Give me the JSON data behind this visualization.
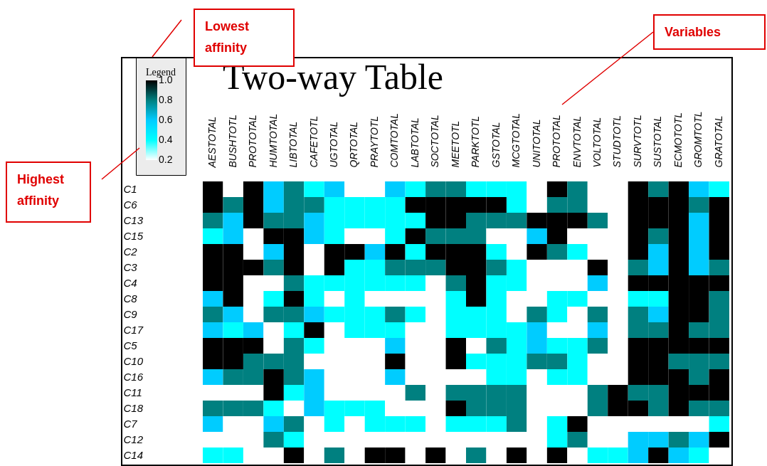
{
  "chart_data": {
    "type": "heatmap",
    "title": "Two-way Table",
    "legend_title": "Legend",
    "clim": [
      0.2,
      1
    ],
    "categories": [
      "AESTOTAL",
      "BUSHTOTL",
      "PROTOTAL",
      "HUMTOTAL",
      "LIBTOTAL",
      "CAFETOTL",
      "UGTOTAL",
      "QRTOTAL",
      "PRAYTOTL",
      "COMTOTAL",
      "LABTOTAL",
      "SOCTOTAL",
      "MEETOTL",
      "PARKTOTL",
      "GSTOTAL",
      "MCGTOTAL",
      "UNITOTAL",
      "PROTOTAL",
      "ENVTOTAL",
      "VOLTOTAL",
      "STUDTOTL",
      "SURVTOTL",
      "SUSTOTAL",
      "ECMOTOTL",
      "GROMTOTL",
      "GRATOTAL"
    ],
    "y_categories": [
      "C1",
      "C6",
      "C13",
      "C15",
      "C2",
      "C3",
      "C4",
      "C8",
      "C9",
      "C17",
      "C5",
      "C10",
      "C16",
      "C11",
      "C18",
      "C7",
      "C12",
      "C14"
    ],
    "cells": [
      [
        1,
        0.2,
        1,
        0.6,
        0.8,
        0.4,
        0.6,
        0.2,
        0.2,
        0.6,
        0.4,
        0.8,
        0.8,
        0.4,
        0.4,
        0.4,
        0.2,
        1,
        0.8,
        0.2,
        0.2,
        1,
        0.8,
        1,
        0.6,
        0.4
      ],
      [
        1,
        0.8,
        1,
        0.6,
        0.8,
        0.8,
        0.4,
        0.4,
        0.4,
        0.4,
        1,
        1,
        1,
        1,
        1,
        0.4,
        0.2,
        0.8,
        0.8,
        0.2,
        0.2,
        1,
        1,
        1,
        0.8,
        1
      ],
      [
        0.8,
        0.6,
        1,
        0.8,
        0.8,
        0.6,
        0.4,
        0.4,
        0.4,
        0.4,
        0.4,
        1,
        1,
        0.8,
        0.8,
        0.8,
        1,
        1,
        1,
        0.8,
        0.2,
        1,
        1,
        1,
        0.6,
        1
      ],
      [
        0.4,
        0.6,
        0.2,
        1,
        1,
        0.6,
        0.4,
        0.2,
        0.2,
        0.4,
        1,
        0.8,
        0.8,
        0.8,
        0.2,
        0.2,
        0.6,
        1,
        0.2,
        0.2,
        0.2,
        1,
        0.8,
        1,
        0.6,
        1
      ],
      [
        1,
        1,
        0.2,
        0.6,
        1,
        0.2,
        1,
        1,
        0.6,
        1,
        0.4,
        1,
        1,
        1,
        0.4,
        0.2,
        1,
        0.8,
        0.4,
        0.2,
        0.2,
        1,
        0.6,
        1,
        0.6,
        1
      ],
      [
        1,
        1,
        1,
        0.8,
        1,
        0.2,
        1,
        0.4,
        0.4,
        0.8,
        0.8,
        0.8,
        1,
        1,
        0.8,
        0.4,
        0.2,
        0.2,
        0.2,
        1,
        0.2,
        0.8,
        0.6,
        1,
        0.6,
        0.8
      ],
      [
        1,
        1,
        0.2,
        0.2,
        0.8,
        0.4,
        0.4,
        0.4,
        0.4,
        0.4,
        0.4,
        0.2,
        0.8,
        1,
        0.4,
        0.4,
        0.2,
        0.2,
        0.2,
        0.6,
        0.2,
        1,
        1,
        1,
        1,
        1
      ],
      [
        0.6,
        1,
        0.2,
        0.4,
        1,
        0.4,
        0.2,
        0.4,
        0.2,
        0.2,
        0.2,
        0.2,
        0.4,
        1,
        0.4,
        0.2,
        0.2,
        0.4,
        0.4,
        0.2,
        0.2,
        0.4,
        0.4,
        1,
        1,
        0.8
      ],
      [
        0.8,
        0.6,
        0.2,
        0.8,
        0.8,
        0.6,
        0.4,
        0.4,
        0.4,
        0.8,
        0.4,
        0.2,
        0.4,
        0.4,
        0.4,
        0.2,
        0.8,
        0.4,
        0.2,
        0.8,
        0.2,
        0.8,
        0.6,
        1,
        1,
        0.8
      ],
      [
        0.6,
        0.4,
        0.6,
        0.2,
        0.4,
        1,
        0.2,
        0.4,
        0.4,
        0.4,
        0.2,
        0.2,
        0.4,
        0.4,
        0.4,
        0.4,
        0.6,
        0.2,
        0.2,
        0.6,
        0.2,
        0.8,
        0.8,
        1,
        0.8,
        0.8
      ],
      [
        1,
        1,
        1,
        0.2,
        0.8,
        0.4,
        0.2,
        0.2,
        0.2,
        0.6,
        0.2,
        0.2,
        1,
        0.2,
        0.8,
        0.4,
        0.6,
        0.4,
        0.4,
        0.8,
        0.2,
        1,
        1,
        1,
        1,
        1
      ],
      [
        1,
        1,
        0.8,
        0.8,
        0.8,
        0.2,
        0.2,
        0.2,
        0.2,
        1,
        0.2,
        0.2,
        1,
        0.4,
        0.4,
        0.4,
        0.8,
        0.8,
        0.4,
        0.2,
        0.2,
        1,
        1,
        0.8,
        0.8,
        0.8
      ],
      [
        0.6,
        0.8,
        0.8,
        1,
        0.8,
        0.6,
        0.2,
        0.2,
        0.2,
        0.6,
        0.2,
        0.2,
        0.2,
        0.2,
        0.4,
        0.4,
        0.2,
        0.4,
        0.4,
        0.2,
        0.2,
        1,
        1,
        1,
        0.8,
        1
      ],
      [
        0.2,
        0.2,
        0.2,
        1,
        0.4,
        0.6,
        0.2,
        0.2,
        0.2,
        0.2,
        0.8,
        0.2,
        0.8,
        0.8,
        0.8,
        0.8,
        0.2,
        0.2,
        0.2,
        0.8,
        1,
        0.8,
        0.8,
        1,
        1,
        1
      ],
      [
        0.8,
        0.8,
        0.8,
        0.4,
        0.2,
        0.6,
        0.4,
        0.4,
        0.4,
        0.2,
        0.2,
        0.2,
        1,
        0.8,
        0.8,
        0.8,
        0.2,
        0.2,
        0.2,
        0.8,
        1,
        1,
        0.8,
        1,
        0.8,
        0.8
      ],
      [
        0.6,
        0.2,
        0.2,
        0.6,
        0.8,
        0.2,
        0.4,
        0.2,
        0.4,
        0.4,
        0.4,
        0.2,
        0.4,
        0.4,
        0.4,
        0.8,
        0.2,
        0.4,
        1,
        0.2,
        0.2,
        0.2,
        0.2,
        0.2,
        0.2,
        0.4
      ],
      [
        0.2,
        0.2,
        0.2,
        0.8,
        0.4,
        0.2,
        0.2,
        0.2,
        0.2,
        0.2,
        0.2,
        0.2,
        0.2,
        0.2,
        0.2,
        0.2,
        0.2,
        0.4,
        0.8,
        0.2,
        0.2,
        0.6,
        0.6,
        0.8,
        0.6,
        1
      ],
      [
        0.4,
        0.4,
        0.2,
        0.2,
        1,
        0.2,
        0.8,
        0.2,
        1,
        1,
        0.2,
        1,
        0.2,
        0.8,
        0.2,
        1,
        0.2,
        1,
        0.2,
        0.4,
        0.4,
        0.6,
        1,
        0.6,
        0.4,
        0.2
      ]
    ],
    "cticks": [
      0.2,
      0.4,
      0.6,
      0.8,
      {
        "value": 1,
        "label": "1.0"
      }
    ],
    "colors": [
      "#ffffff",
      "#00ffff",
      "#00ccff",
      "#008080",
      "#000000"
    ],
    "annotations": [
      "Lowest affinity",
      "Highest affinity",
      "Variables"
    ]
  }
}
